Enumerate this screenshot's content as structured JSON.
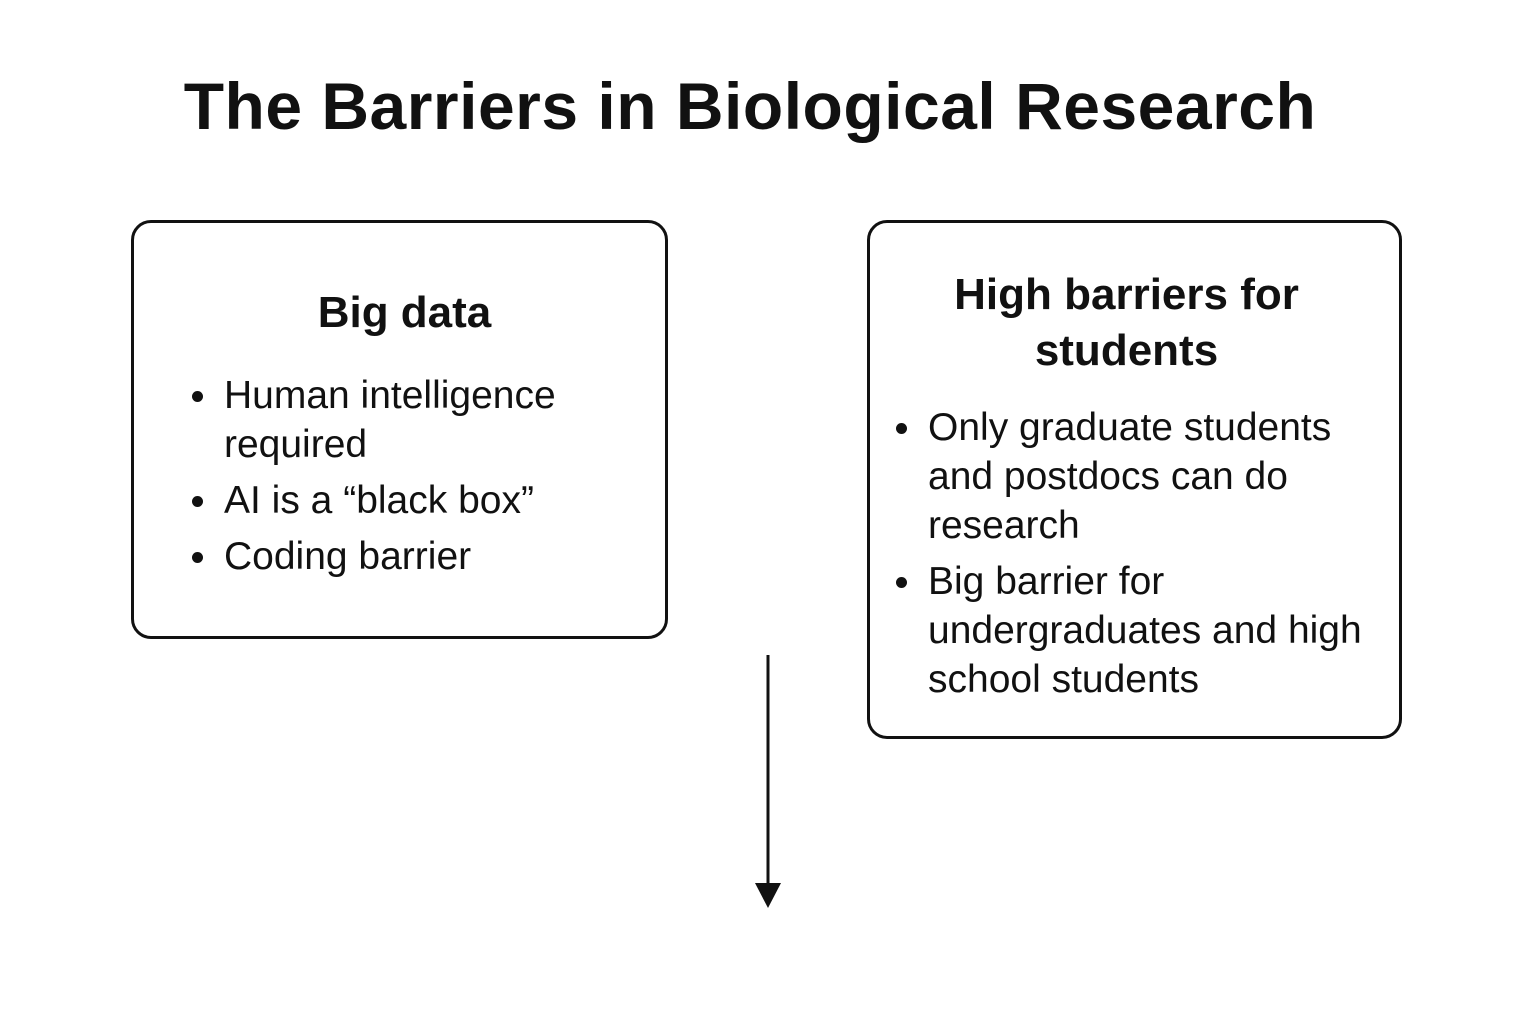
{
  "title": "The Barriers in Biological Research",
  "boxes": [
    {
      "heading": "Big data",
      "bullets": [
        "Human intelligence required",
        "AI is a “black box”",
        "Coding barrier"
      ]
    },
    {
      "heading": "High barriers for students",
      "bullets": [
        "Only graduate students and postdocs can do research",
        "Big barrier for undergraduates and high school students"
      ]
    }
  ],
  "colors": {
    "stroke": "#111111",
    "background": "#ffffff"
  }
}
